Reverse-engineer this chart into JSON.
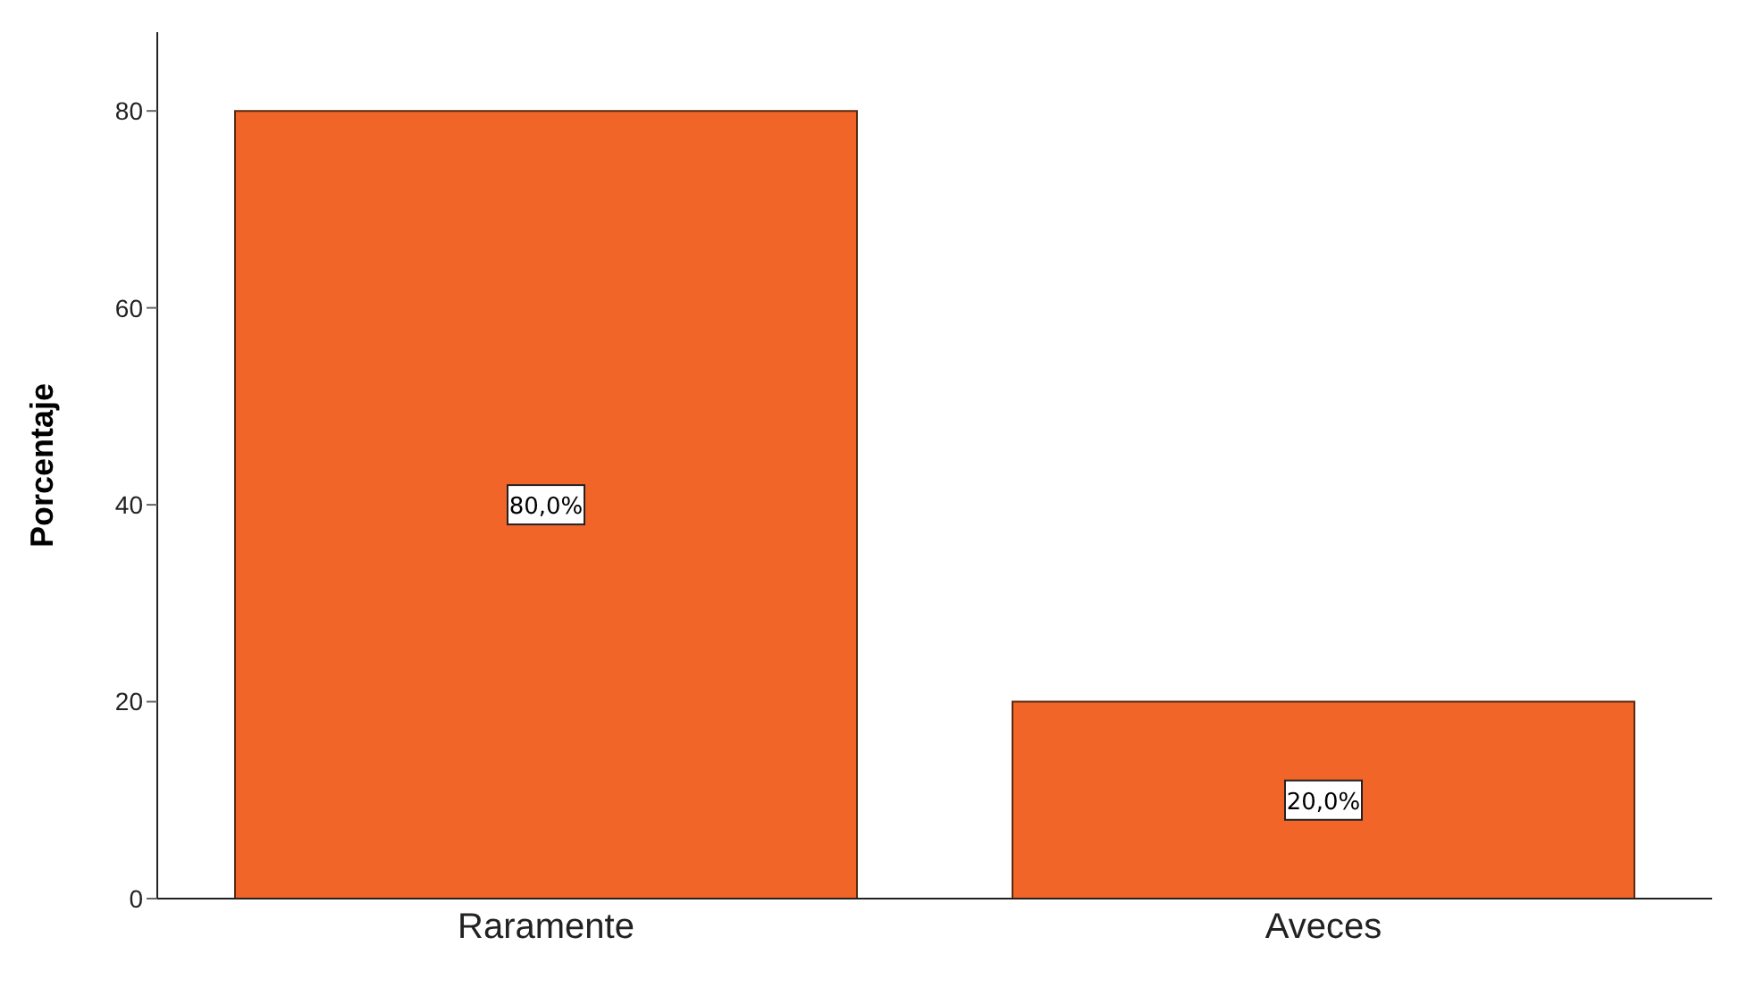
{
  "chart_data": {
    "type": "bar",
    "ylabel": "Porcentaje",
    "categories": [
      "Raramente",
      "Aveces"
    ],
    "values": [
      80,
      20
    ],
    "value_labels": [
      "80,0%",
      "20,0%"
    ],
    "color": "#f26529",
    "ylim": [
      0,
      88
    ],
    "yticks": [
      0,
      20,
      40,
      60,
      80
    ]
  }
}
